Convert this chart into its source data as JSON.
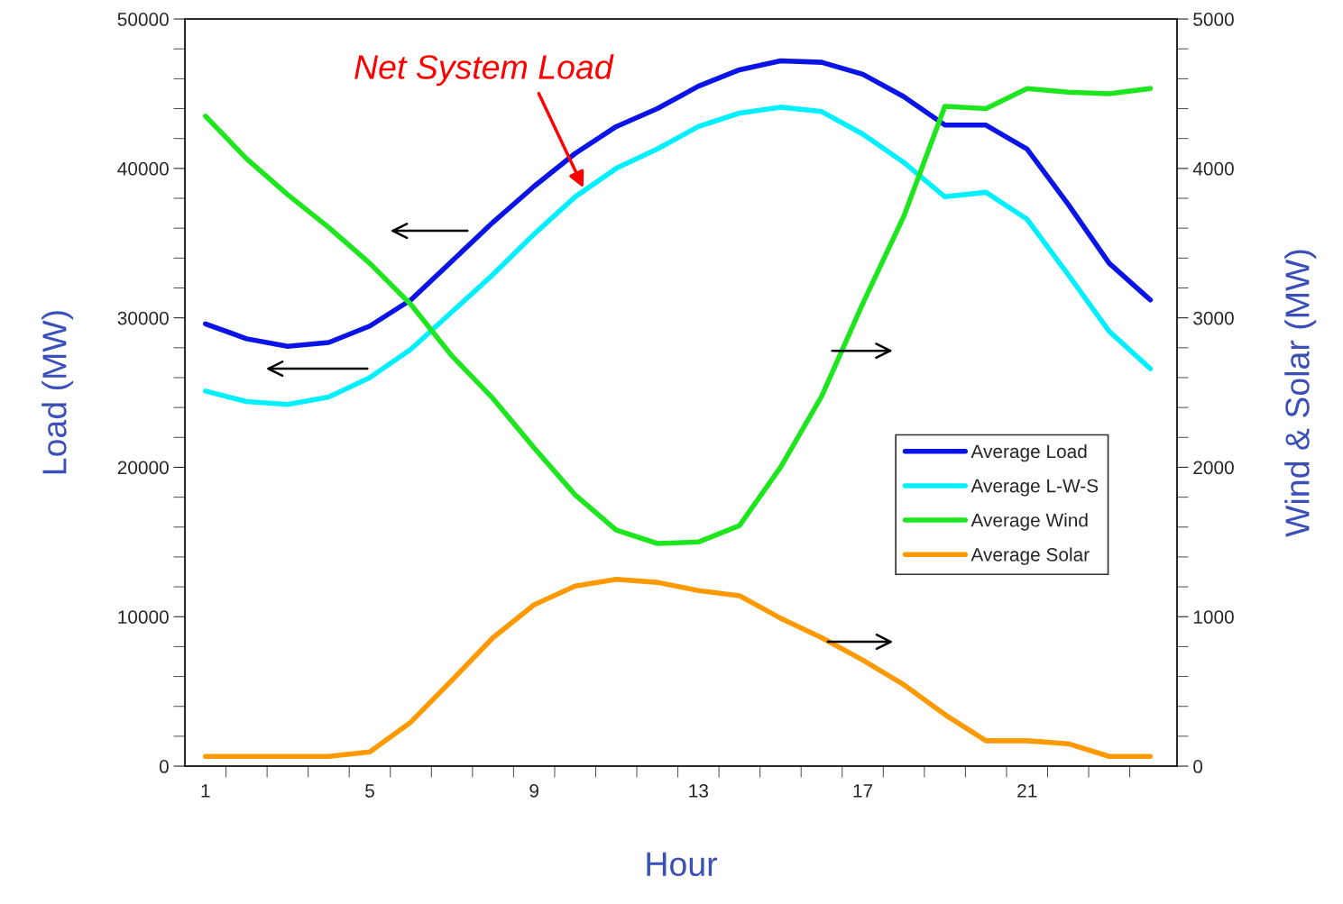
{
  "chart_data": {
    "type": "line",
    "xlabel": "Hour",
    "ylabel": "Load (MW)",
    "y2label": "Wind & Solar (MW)",
    "x": [
      1,
      2,
      3,
      4,
      5,
      6,
      7,
      8,
      9,
      10,
      11,
      12,
      13,
      14,
      15,
      16,
      17,
      18,
      19,
      20,
      21,
      22,
      23,
      24
    ],
    "series": [
      {
        "name": "Average Load",
        "color": "#0a14e6",
        "values": [
          29600,
          28600,
          28100,
          28350,
          29450,
          31200,
          33800,
          36400,
          38800,
          41000,
          42800,
          44000,
          45500,
          46600,
          47200,
          47100,
          46300,
          44800,
          42900,
          42900,
          41300,
          37600,
          33650,
          31200
        ]
      },
      {
        "name": "Average L-W-S",
        "color": "#00f0ff",
        "values": [
          25100,
          24400,
          24200,
          24700,
          26000,
          27900,
          30400,
          32900,
          35600,
          38100,
          40000,
          41300,
          42800,
          43700,
          44100,
          43800,
          42300,
          40400,
          38100,
          38400,
          36600,
          32900,
          29100,
          26600
        ]
      },
      {
        "name": "Average Wind",
        "color": "#1ee61e",
        "axis": "y2",
        "values": [
          4350,
          4065,
          3825,
          3605,
          3365,
          3090,
          2745,
          2460,
          2130,
          1815,
          1580,
          1490,
          1500,
          1610,
          2000,
          2475,
          3095,
          3680,
          4415,
          4400,
          4535,
          4510,
          4500,
          4535
        ]
      },
      {
        "name": "Average Solar",
        "color": "#ff9900",
        "axis": "y2",
        "values": [
          65,
          65,
          65,
          65,
          95,
          295,
          575,
          860,
          1080,
          1205,
          1250,
          1230,
          1175,
          1140,
          990,
          860,
          710,
          545,
          345,
          170,
          170,
          150,
          65,
          65
        ]
      }
    ],
    "annotations": [
      {
        "text": "Net System Load",
        "x": 10.2,
        "y": 38700
      }
    ],
    "xlim": [
      0.5,
      24.65
    ],
    "xticks": [
      1,
      5,
      9,
      13,
      17,
      21,
      {
        "value": 1.5,
        "label": null
      },
      {
        "value": 2.5,
        "label": null
      },
      {
        "value": 3.5,
        "label": null
      },
      {
        "value": 4.5,
        "label": null
      },
      {
        "value": 5.5,
        "label": null
      },
      {
        "value": 6.5,
        "label": null
      },
      {
        "value": 7.5,
        "label": null
      },
      {
        "value": 8.5,
        "label": null
      },
      {
        "value": 9.5,
        "label": null
      },
      {
        "value": 10.5,
        "label": null
      },
      {
        "value": 11.5,
        "label": null
      },
      {
        "value": 12.5,
        "label": null
      },
      {
        "value": 13.5,
        "label": null
      },
      {
        "value": 14.5,
        "label": null
      },
      {
        "value": 15.5,
        "label": null
      },
      {
        "value": 16.5,
        "label": null
      },
      {
        "value": 17.5,
        "label": null
      },
      {
        "value": 18.5,
        "label": null
      },
      {
        "value": 19.5,
        "label": null
      },
      {
        "value": 20.5,
        "label": null
      },
      {
        "value": 21.5,
        "label": null
      },
      {
        "value": 22.5,
        "label": null
      },
      {
        "value": 23.5,
        "label": null
      }
    ],
    "ylim": [
      0,
      50000
    ],
    "yticks": [
      0,
      10000,
      20000,
      30000,
      40000,
      50000,
      {
        "value": 2000,
        "label": null
      },
      {
        "value": 4000,
        "label": null
      },
      {
        "value": 6000,
        "label": null
      },
      {
        "value": 8000,
        "label": null
      },
      {
        "value": 12000,
        "label": null
      },
      {
        "value": 14000,
        "label": null
      },
      {
        "value": 16000,
        "label": null
      },
      {
        "value": 18000,
        "label": null
      },
      {
        "value": 22000,
        "label": null
      },
      {
        "value": 24000,
        "label": null
      },
      {
        "value": 26000,
        "label": null
      },
      {
        "value": 28000,
        "label": null
      },
      {
        "value": 32000,
        "label": null
      },
      {
        "value": 34000,
        "label": null
      },
      {
        "value": 36000,
        "label": null
      },
      {
        "value": 38000,
        "label": null
      },
      {
        "value": 42000,
        "label": null
      },
      {
        "value": 44000,
        "label": null
      },
      {
        "value": 46000,
        "label": null
      },
      {
        "value": 48000,
        "label": null
      }
    ],
    "y2lim": [
      0,
      5000
    ],
    "y2ticks": [
      0,
      1000,
      2000,
      3000,
      4000,
      5000,
      {
        "value": 200,
        "label": null
      },
      {
        "value": 400,
        "label": null
      },
      {
        "value": 600,
        "label": null
      },
      {
        "value": 800,
        "label": null
      },
      {
        "value": 1200,
        "label": null
      },
      {
        "value": 1400,
        "label": null
      },
      {
        "value": 1600,
        "label": null
      },
      {
        "value": 1800,
        "label": null
      },
      {
        "value": 2200,
        "label": null
      },
      {
        "value": 2400,
        "label": null
      },
      {
        "value": 2600,
        "label": null
      },
      {
        "value": 2800,
        "label": null
      },
      {
        "value": 3200,
        "label": null
      },
      {
        "value": 3400,
        "label": null
      },
      {
        "value": 3600,
        "label": null
      },
      {
        "value": 3800,
        "label": null
      },
      {
        "value": 4200,
        "label": null
      },
      {
        "value": 4400,
        "label": null
      },
      {
        "value": 4600,
        "label": null
      },
      {
        "value": 4800,
        "label": null
      }
    ],
    "legend": "right",
    "grid": false,
    "marker": "none",
    "line_style": "solid"
  }
}
